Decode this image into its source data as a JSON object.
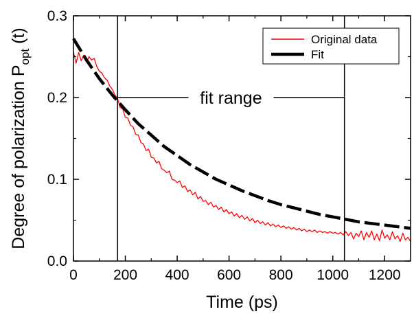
{
  "chart_data": {
    "type": "line",
    "xlabel": "Time (ps)",
    "ylabel": {
      "text": "Degree of polarization P",
      "subscript": "opt",
      "suffix": " (t)"
    },
    "xlim": [
      0,
      1300
    ],
    "ylim": [
      0.0,
      0.3
    ],
    "xticks": [
      0,
      200,
      400,
      600,
      800,
      1000,
      1200
    ],
    "yticks": [
      0.0,
      0.1,
      0.2,
      0.3
    ],
    "ytick_labels": [
      "0.0",
      "0.1",
      "0.2",
      "0.3"
    ],
    "grid": false,
    "legend_position": "top-right",
    "series": [
      {
        "name": "Original data",
        "color": "#ff0000",
        "x": [
          0,
          10,
          20,
          30,
          40,
          50,
          60,
          70,
          80,
          90,
          100,
          110,
          120,
          130,
          140,
          150,
          160,
          170,
          180,
          190,
          200,
          210,
          220,
          230,
          240,
          250,
          260,
          270,
          280,
          290,
          300,
          310,
          320,
          330,
          340,
          350,
          360,
          370,
          380,
          390,
          400,
          410,
          420,
          430,
          440,
          450,
          460,
          470,
          480,
          490,
          500,
          510,
          520,
          530,
          540,
          550,
          560,
          570,
          580,
          590,
          600,
          610,
          620,
          630,
          640,
          650,
          660,
          670,
          680,
          690,
          700,
          710,
          720,
          730,
          740,
          750,
          760,
          770,
          780,
          790,
          800,
          810,
          820,
          830,
          840,
          850,
          860,
          870,
          880,
          890,
          900,
          910,
          920,
          930,
          940,
          950,
          960,
          970,
          980,
          990,
          1000,
          1010,
          1020,
          1030,
          1040,
          1050,
          1060,
          1070,
          1080,
          1090,
          1100,
          1110,
          1120,
          1130,
          1140,
          1150,
          1160,
          1170,
          1180,
          1190,
          1200,
          1210,
          1220,
          1230,
          1240,
          1250,
          1260,
          1270,
          1280,
          1290,
          1300
        ],
        "y": [
          0.256,
          0.242,
          0.255,
          0.245,
          0.252,
          0.243,
          0.25,
          0.246,
          0.248,
          0.238,
          0.232,
          0.23,
          0.224,
          0.221,
          0.214,
          0.21,
          0.203,
          0.199,
          0.188,
          0.186,
          0.176,
          0.175,
          0.166,
          0.164,
          0.155,
          0.154,
          0.145,
          0.143,
          0.135,
          0.137,
          0.127,
          0.126,
          0.12,
          0.122,
          0.113,
          0.111,
          0.108,
          0.11,
          0.1,
          0.099,
          0.096,
          0.098,
          0.09,
          0.092,
          0.085,
          0.087,
          0.081,
          0.084,
          0.076,
          0.079,
          0.073,
          0.074,
          0.069,
          0.072,
          0.066,
          0.068,
          0.063,
          0.066,
          0.06,
          0.063,
          0.058,
          0.06,
          0.055,
          0.058,
          0.053,
          0.056,
          0.051,
          0.054,
          0.049,
          0.052,
          0.047,
          0.05,
          0.046,
          0.048,
          0.044,
          0.047,
          0.043,
          0.045,
          0.042,
          0.044,
          0.041,
          0.043,
          0.04,
          0.042,
          0.039,
          0.041,
          0.038,
          0.04,
          0.037,
          0.039,
          0.036,
          0.038,
          0.036,
          0.038,
          0.035,
          0.037,
          0.035,
          0.036,
          0.034,
          0.036,
          0.034,
          0.035,
          0.033,
          0.035,
          0.032,
          0.036,
          0.031,
          0.035,
          0.027,
          0.034,
          0.03,
          0.037,
          0.026,
          0.035,
          0.029,
          0.037,
          0.026,
          0.033,
          0.025,
          0.038,
          0.028,
          0.032,
          0.026,
          0.036,
          0.027,
          0.031,
          0.024,
          0.034,
          0.026,
          0.029,
          0.024
        ]
      },
      {
        "name": "Fit",
        "color": "#000000",
        "style": "dashed",
        "x": [
          0,
          50,
          100,
          150,
          200,
          250,
          300,
          350,
          400,
          450,
          500,
          550,
          600,
          650,
          700,
          750,
          800,
          850,
          900,
          950,
          1000,
          1050,
          1100,
          1150,
          1200,
          1250,
          1300
        ],
        "y": [
          0.272,
          0.246,
          0.223,
          0.203,
          0.185,
          0.168,
          0.154,
          0.14,
          0.129,
          0.118,
          0.109,
          0.1,
          0.093,
          0.086,
          0.08,
          0.074,
          0.069,
          0.065,
          0.061,
          0.057,
          0.054,
          0.051,
          0.048,
          0.046,
          0.044,
          0.042,
          0.04
        ]
      }
    ],
    "annotations": {
      "fit_range_label": "fit range",
      "fit_range_start": 170,
      "fit_range_end": 1045,
      "fit_range_y": 0.2
    }
  }
}
